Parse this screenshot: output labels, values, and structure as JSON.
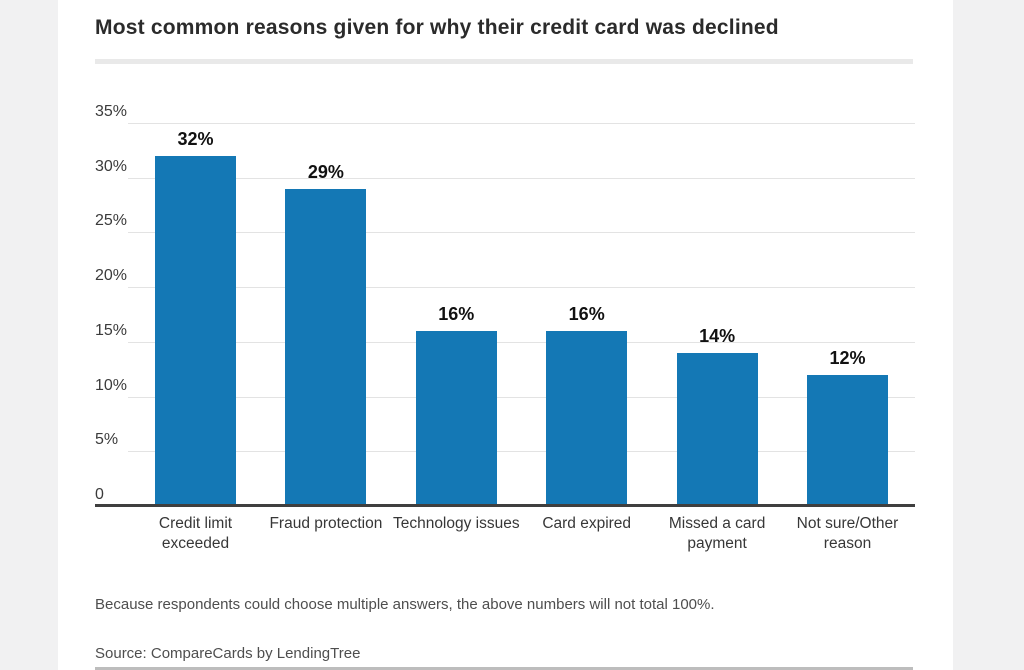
{
  "title": "Most common reasons given for why their credit card was declined",
  "note": "Because respondents could choose multiple answers, the above numbers will not total 100%.",
  "source": "Source: CompareCards by LendingTree",
  "colors": {
    "bar": "#1478b5",
    "title_text": "#2b2b2b",
    "axis_line": "#3f3f3f",
    "gridline": "#e3e3e3",
    "muted_text": "#4e4e4e",
    "page_background": "#f1f1f2",
    "panel_background": "#ffffff"
  },
  "chart_data": {
    "type": "bar",
    "title": "Most common reasons given for why their credit card was declined",
    "categories": [
      "Credit limit exceeded",
      "Fraud protection",
      "Technology issues",
      "Card expired",
      "Missed a card payment",
      "Not sure/Other reason"
    ],
    "values": [
      32,
      29,
      16,
      16,
      14,
      12
    ],
    "value_labels": [
      "32%",
      "29%",
      "16%",
      "16%",
      "14%",
      "12%"
    ],
    "xlabel": "",
    "ylabel": "",
    "ylim": [
      0,
      35
    ],
    "ytick_step": 5,
    "ytick_labels": [
      "35%",
      "30%",
      "25%",
      "20%",
      "15%",
      "10%",
      "5%",
      "0"
    ],
    "grid": true,
    "legend": false,
    "note": "Because respondents could choose multiple answers, the above numbers will not total 100%.",
    "source": "Source: CompareCards by LendingTree"
  }
}
